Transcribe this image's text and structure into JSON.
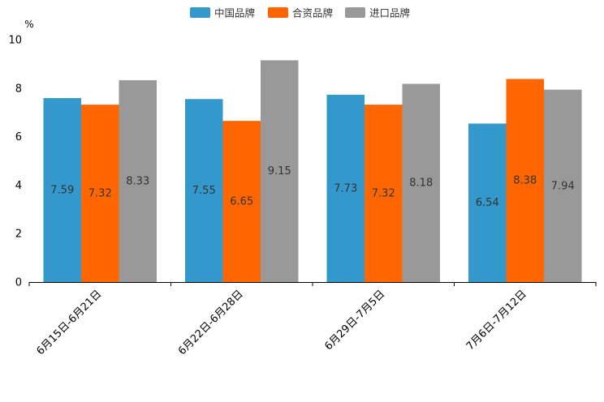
{
  "chart_data": {
    "type": "bar",
    "title": "",
    "ylabel": "%",
    "xlabel": "",
    "ylim": [
      0,
      10
    ],
    "yticks": [
      "0",
      "2",
      "4",
      "6",
      "8",
      "10"
    ],
    "categories": [
      "6月15日-6月21日",
      "6月22日-6月28日",
      "6月29日-7月5日",
      "7月6日-7月12日"
    ],
    "series": [
      {
        "name": "中国品牌",
        "color": "#3399CC",
        "values": [
          7.59,
          7.55,
          7.73,
          6.54
        ],
        "labels": [
          "7.59",
          "7.55",
          "7.73",
          "6.54"
        ]
      },
      {
        "name": "合资品牌",
        "color": "#FF6600",
        "values": [
          7.32,
          6.65,
          7.32,
          8.38
        ],
        "labels": [
          "7.32",
          "6.65",
          "7.32",
          "8.38"
        ]
      },
      {
        "name": "进口品牌",
        "color": "#999999",
        "values": [
          8.33,
          9.15,
          8.18,
          7.94
        ],
        "labels": [
          "8.33",
          "9.15",
          "8.18",
          "7.94"
        ]
      }
    ],
    "legend_position": "top-center",
    "grid": false
  }
}
